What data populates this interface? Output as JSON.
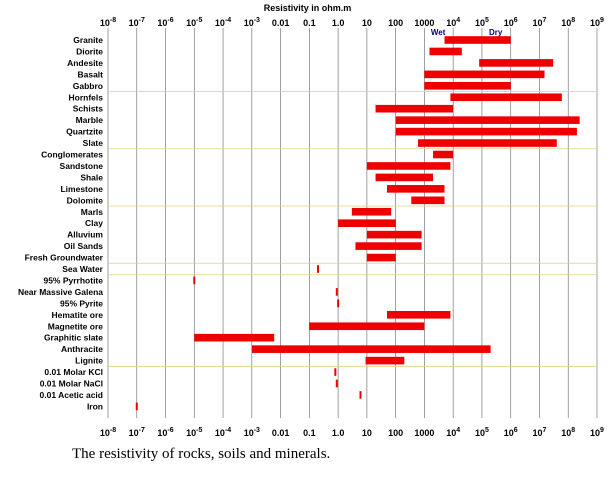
{
  "chart_data": {
    "type": "bar",
    "orientation": "horizontal",
    "title": "Resistivity in ohm.m",
    "x_scale": "log",
    "xlim": [
      1e-08,
      1000000000.0
    ],
    "tick_labels": [
      "10^-8",
      "10^-7",
      "10^-6",
      "10^-5",
      "10^-4",
      "10^-3",
      "0.01",
      "0.1",
      "1.0",
      "10",
      "100",
      "1000",
      "10^4",
      "10^5",
      "10^6",
      "10^7",
      "10^8",
      "10^9"
    ],
    "annotations": [
      {
        "text": "Wet",
        "x": 3000,
        "color": "#00008b"
      },
      {
        "text": "Dry",
        "x": 300000,
        "color": "#00008b"
      }
    ],
    "bar_color": "#ee0000",
    "group_separator_color": "#e0d080",
    "series": [
      {
        "name": "",
        "values": [
          {
            "label": "Granite",
            "min": 5000,
            "max": 1000000
          },
          {
            "label": "Diorite",
            "min": 1500,
            "max": 20000
          },
          {
            "label": "Andesite",
            "min": 80000,
            "max": 30000000
          },
          {
            "label": "Basalt",
            "min": 1000,
            "max": 15000000
          },
          {
            "label": "Gabbro",
            "min": 1000,
            "max": 1000000
          },
          {
            "label": "Hornfels",
            "min": 8000,
            "max": 60000000
          },
          {
            "label": "Schists",
            "min": 20,
            "max": 10000
          },
          {
            "label": "Marble",
            "min": 100,
            "max": 250000000
          },
          {
            "label": "Quartzite",
            "min": 100,
            "max": 200000000
          },
          {
            "label": "Slate",
            "min": 600,
            "max": 40000000
          },
          {
            "label": "Conglomerates",
            "min": 2000,
            "max": 10000
          },
          {
            "label": "Sandstone",
            "min": 10,
            "max": 8000
          },
          {
            "label": "Shale",
            "min": 20,
            "max": 2000
          },
          {
            "label": "Limestone",
            "min": 50,
            "max": 5000
          },
          {
            "label": "Dolomite",
            "min": 350,
            "max": 5000
          },
          {
            "label": "Marls",
            "min": 3,
            "max": 70
          },
          {
            "label": "Clay",
            "min": 1,
            "max": 100
          },
          {
            "label": "Alluvium",
            "min": 10,
            "max": 800
          },
          {
            "label": "Oil Sands",
            "min": 4,
            "max": 800
          },
          {
            "label": "Fresh Groundwater",
            "min": 10,
            "max": 100
          },
          {
            "label": "Sea Water",
            "min": 0.2,
            "max": 0.2
          },
          {
            "label": "95% Pyrrhotite",
            "min": 1e-05,
            "max": 1e-05
          },
          {
            "label": "Near Massive Galena",
            "min": 0.9,
            "max": 0.9
          },
          {
            "label": "95% Pyrite",
            "min": 1.0,
            "max": 1.0
          },
          {
            "label": "Hematite ore",
            "min": 50,
            "max": 8000
          },
          {
            "label": "Magnetite ore",
            "min": 0.1,
            "max": 1000
          },
          {
            "label": "Graphitic slate",
            "min": 1e-05,
            "max": 0.006
          },
          {
            "label": "Anthracite",
            "min": 0.001,
            "max": 200000
          },
          {
            "label": "Lignite",
            "min": 9,
            "max": 200
          },
          {
            "label": "0.01 Molar KCl",
            "min": 0.8,
            "max": 0.8
          },
          {
            "label": "0.01 Molar NaCl",
            "min": 0.9,
            "max": 0.9
          },
          {
            "label": "0.01 Acetic acid",
            "min": 6,
            "max": 6
          },
          {
            "label": "Iron",
            "min": 1e-07,
            "max": 1e-07
          }
        ]
      }
    ],
    "group_breaks_after": [
      "Gabbro",
      "Slate",
      "Dolomite",
      "Fresh Groundwater",
      "Sea Water",
      "Lignite"
    ]
  },
  "caption": "The resistivity of rocks, soils and minerals."
}
